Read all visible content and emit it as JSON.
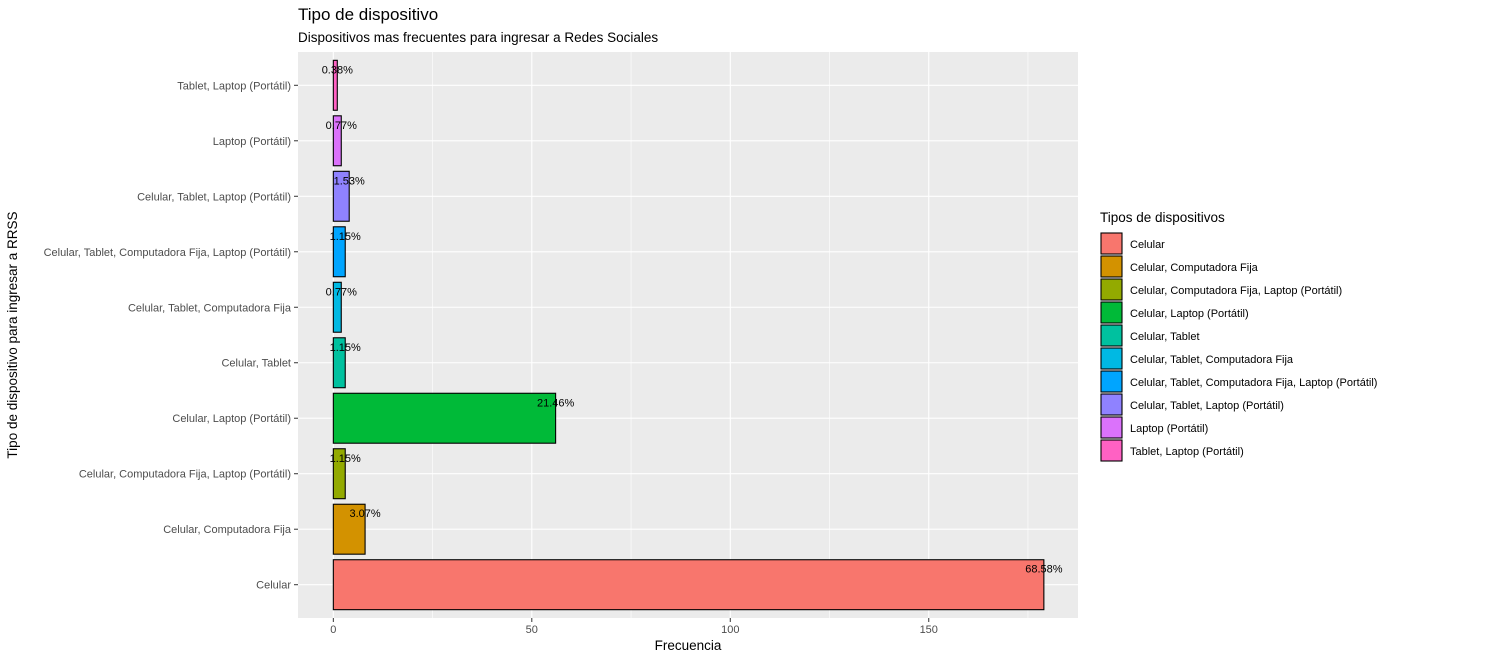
{
  "chart_data": {
    "type": "bar",
    "orientation": "horizontal",
    "title": "Tipo de dispositivo",
    "subtitle": "Dispositivos mas frecuentes para ingresar a Redes Sociales",
    "xlabel": "Frecuencia",
    "ylabel": "Tipo de dispositivo para ingresar a RRSS",
    "xlim": [
      -8.9,
      187.6
    ],
    "x_ticks": [
      0,
      50,
      100,
      150
    ],
    "grid": true,
    "legend_position": "right",
    "legend_title": "Tipos de dispositivos",
    "categories": [
      "Celular",
      "Celular, Computadora Fija",
      "Celular, Computadora Fija, Laptop (Portátil)",
      "Celular, Laptop (Portátil)",
      "Celular, Tablet",
      "Celular, Tablet, Computadora Fija",
      "Celular, Tablet, Computadora Fija, Laptop (Portátil)",
      "Celular, Tablet, Laptop (Portátil)",
      "Laptop (Portátil)",
      "Tablet, Laptop (Portátil)"
    ],
    "values": [
      179,
      8,
      3,
      56,
      3,
      2,
      3,
      4,
      2,
      1
    ],
    "labels": [
      "68.58%",
      "3.07%",
      "1.15%",
      "21.46%",
      "1.15%",
      "0.77%",
      "1.15%",
      "1.53%",
      "0.77%",
      "0.38%"
    ],
    "colors": [
      "#F8766D",
      "#D39200",
      "#93AA00",
      "#00BA38",
      "#00C19F",
      "#00B9E3",
      "#00A5FF",
      "#8F82FF",
      "#DB72FB",
      "#FF61C3"
    ]
  }
}
